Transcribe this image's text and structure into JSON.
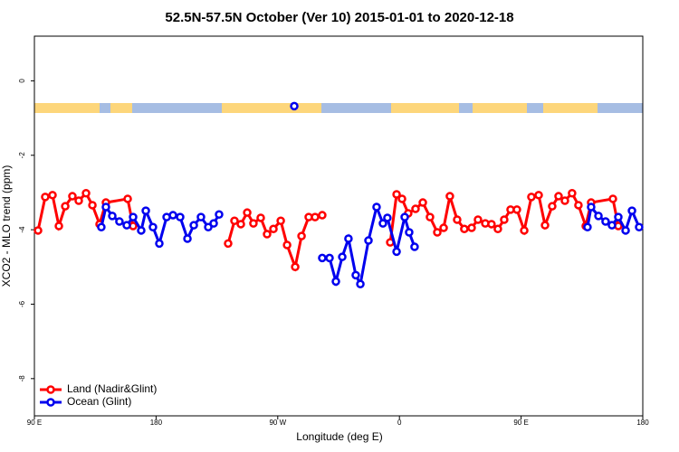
{
  "chart_data": {
    "type": "line",
    "title": "52.5N-57.5N October (Ver 10)   2015-01-01 to 2020-12-18",
    "x_label": "Longitude (deg E)",
    "y_label": "XCO2 - MLO trend (ppm)",
    "xlim": [
      90,
      540
    ],
    "ylim": [
      -9.0,
      1.2
    ],
    "xticks": [
      {
        "value": 90,
        "label": "90 E"
      },
      180,
      {
        "value": 270,
        "label": "90 W"
      },
      {
        "value": 360,
        "label": "0"
      },
      {
        "value": 450,
        "label": "90 E"
      },
      {
        "value": 540,
        "label": "180"
      }
    ],
    "yticks": [
      0,
      -2,
      -4,
      -6,
      -8
    ],
    "legend": "bottom-left",
    "series": [
      {
        "name": "Land (Nadir&Glint)",
        "color": "#ff0000",
        "x": [
          92.7,
          98.0,
          103.4,
          108.1,
          112.8,
          118.1,
          122.8,
          128.2,
          132.9,
          138.2,
          142.9,
          159.0,
          163.0,
          null,
          233.3,
          238.0,
          242.7,
          247.4,
          252.0,
          257.4,
          262.1,
          266.8,
          272.2,
          276.9,
          282.9,
          287.6,
          292.9,
          297.6,
          302.9,
          null,
          353.2,
          357.9,
          361.9,
          366.5,
          371.9,
          377.3,
          382.6,
          388.0,
          392.7,
          397.3,
          402.7,
          408.0,
          413.4,
          418.1,
          423.5,
          428.1,
          432.8,
          437.5,
          442.2,
          446.9,
          452.3,
          457.6,
          463.0,
          467.7,
          473.0,
          477.7,
          482.4,
          487.7,
          492.4,
          497.8,
          501.8,
          517.9,
          521.9
        ],
        "values": [
          -4.02,
          -3.12,
          -3.07,
          -3.9,
          -3.37,
          -3.1,
          -3.22,
          -3.02,
          -3.34,
          -3.85,
          -3.27,
          -3.17,
          -3.9,
          null,
          -4.37,
          -3.76,
          -3.85,
          -3.54,
          -3.83,
          -3.68,
          -4.12,
          -3.98,
          -3.76,
          -4.41,
          -5.0,
          -4.17,
          -3.66,
          -3.66,
          -3.61,
          null,
          -4.34,
          -3.05,
          -3.17,
          -3.56,
          -3.44,
          -3.27,
          -3.66,
          -4.07,
          -3.95,
          -3.1,
          -3.73,
          -3.98,
          -3.95,
          -3.73,
          -3.83,
          -3.85,
          -3.98,
          -3.73,
          -3.46,
          -3.46,
          -4.02,
          -3.12,
          -3.07,
          -3.88,
          -3.37,
          -3.1,
          -3.22,
          -3.02,
          -3.34,
          -3.9,
          -3.27,
          -3.17,
          -3.9
        ]
      },
      {
        "name": "Ocean (Glint)",
        "color": "#0000ee",
        "x": [
          139.5,
          142.9,
          147.6,
          152.9,
          158.3,
          163.0,
          169.0,
          172.4,
          177.7,
          182.4,
          187.8,
          192.5,
          197.8,
          203.2,
          207.9,
          213.2,
          218.6,
          222.6,
          226.6,
          null,
          282.2,
          null,
          302.9,
          308.3,
          313.0,
          317.7,
          322.3,
          327.7,
          331.1,
          337.1,
          343.1,
          347.8,
          351.1,
          357.9,
          363.9,
          367.2,
          371.2,
          null,
          499.1,
          501.8,
          507.2,
          512.5,
          517.2,
          521.9,
          527.3,
          532.0,
          537.3
        ],
        "values": [
          -3.93,
          -3.39,
          -3.63,
          -3.78,
          -3.88,
          -3.66,
          -4.02,
          -3.49,
          -3.93,
          -4.37,
          -3.66,
          -3.61,
          -3.66,
          -4.24,
          -3.88,
          -3.66,
          -3.93,
          -3.83,
          -3.59,
          null,
          -0.68,
          null,
          -4.76,
          -4.76,
          -5.39,
          -4.73,
          -4.24,
          -5.22,
          -5.46,
          -4.29,
          -3.39,
          -3.83,
          -3.68,
          -4.59,
          -3.66,
          -4.07,
          -4.46,
          null,
          -3.93,
          -3.39,
          -3.63,
          -3.78,
          -3.88,
          -3.66,
          -4.02,
          -3.49,
          -3.93
        ]
      }
    ]
  }
}
